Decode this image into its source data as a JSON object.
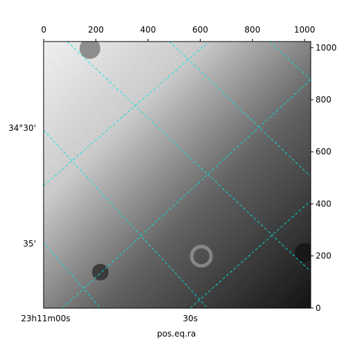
{
  "chart_data": {
    "type": "image",
    "xlabel": "pos.eq.ra",
    "xlim": [
      -0.5,
      1023.5
    ],
    "xticks": [
      0,
      200,
      400,
      600,
      800,
      1000
    ],
    "ylim": [
      -0.5,
      1023.5
    ],
    "yticks": [
      0,
      200,
      400,
      600,
      800,
      1000
    ],
    "world_x_labels": [
      "23h11m00s",
      "30s"
    ],
    "world_y_labels": [
      "34°30'",
      "35'"
    ],
    "grid_color": "#00e5e5"
  }
}
